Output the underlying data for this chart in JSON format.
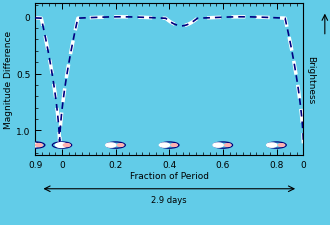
{
  "title": "",
  "xlabel": "Fraction of Period",
  "ylabel": "Magnitude Difference",
  "ylabel_right": "Brightness",
  "xlabel_bottom2": "2.9 days",
  "background_color": "#62cce8",
  "plot_bg_color": "#62cce8",
  "line_color_dark": "#000080",
  "line_color_white": "#ffffff",
  "yticks": [
    0,
    0.5,
    1.0
  ],
  "xtick_labels": [
    "0.9",
    "0",
    "0.2",
    "0.4",
    "0.6",
    "0.8",
    "0"
  ],
  "xtick_positions": [
    0.0,
    0.1,
    0.3,
    0.5,
    0.7,
    0.9,
    1.0
  ],
  "ylim": [
    1.22,
    -0.12
  ],
  "xlim": [
    0.0,
    1.0
  ],
  "figsize": [
    3.3,
    2.26
  ],
  "dpi": 100
}
